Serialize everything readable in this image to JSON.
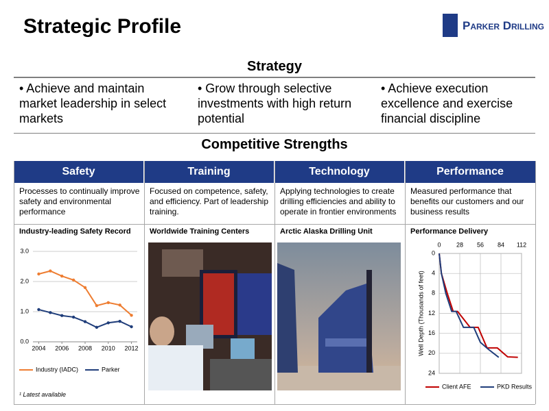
{
  "header": {
    "title": "Strategic Profile",
    "logo": "Parker Drilling"
  },
  "strategy": {
    "heading": "Strategy",
    "items": [
      "• Achieve and maintain market leadership in select markets",
      "• Grow through selective investments with high return potential",
      "• Achieve execution excellence and exercise financial discipline"
    ]
  },
  "strengths": {
    "heading": "Competitive Strengths",
    "columns": [
      {
        "title": "Safety",
        "text": "Processes to continually improve safety and environmental performance",
        "caption": "Industry-leading Safety Record"
      },
      {
        "title": "Training",
        "text": "Focused on competence, safety, and efficiency.  Part of leadership training.",
        "caption": "Worldwide Training Centers"
      },
      {
        "title": "Technology",
        "text": "Applying technologies to create drilling efficiencies and ability to operate in frontier environments",
        "caption": "Arctic Alaska Drilling Unit"
      },
      {
        "title": "Performance",
        "text": "Measured performance that benefits our customers and our business results",
        "caption": "Performance Delivery"
      }
    ]
  },
  "footnote": "¹ Latest available",
  "chart_data": [
    {
      "type": "line",
      "x": [
        2004,
        2005,
        2006,
        2007,
        2008,
        2009,
        2010,
        2011,
        2012
      ],
      "xlim": [
        2003.5,
        2012.5
      ],
      "xticks": [
        2004,
        2006,
        2008,
        2010,
        2012
      ],
      "ylim": [
        0,
        3
      ],
      "yticks": [
        {
          "value": 0,
          "label": "0.0"
        },
        {
          "value": 1,
          "label": "1.0"
        },
        {
          "value": 2,
          "label": "2.0"
        },
        {
          "value": 3,
          "label": "3.0"
        }
      ],
      "grid": true,
      "series": [
        {
          "name": "Industry (IADC)",
          "color": "#ee7d31",
          "values": [
            2.25,
            2.35,
            2.18,
            2.05,
            1.8,
            1.2,
            1.3,
            1.22,
            0.88
          ]
        },
        {
          "name": "Parker",
          "color": "#1f3d7a",
          "values": [
            1.07,
            0.97,
            0.87,
            0.82,
            0.67,
            0.48,
            0.63,
            0.68,
            0.5
          ]
        }
      ]
    },
    {
      "type": "line",
      "y_label": "Well Depth (Thousands of feet)",
      "xlim": [
        0,
        112
      ],
      "xticks": [
        0,
        28,
        56,
        84,
        112
      ],
      "ylim": [
        0,
        24
      ],
      "yticks": [
        0,
        4,
        8,
        12,
        16,
        20,
        24
      ],
      "y_inverted": true,
      "x_axis_top": true,
      "grid": true,
      "series": [
        {
          "name": "Client AFE",
          "color": "#c00000",
          "x": [
            0,
            3,
            11,
            19,
            25,
            42,
            53,
            65,
            79,
            93,
            107
          ],
          "values": [
            0,
            4,
            8,
            11.6,
            11.6,
            14.8,
            14.8,
            18.9,
            18.9,
            20.7,
            20.8
          ]
        },
        {
          "name": "PKD Results",
          "color": "#1f3d7a",
          "x": [
            0,
            3,
            9,
            17,
            23,
            33,
            47,
            56,
            67,
            81
          ],
          "values": [
            0,
            4,
            8,
            11.6,
            11.6,
            14.8,
            14.8,
            17.8,
            19.2,
            20.8
          ]
        }
      ]
    }
  ]
}
